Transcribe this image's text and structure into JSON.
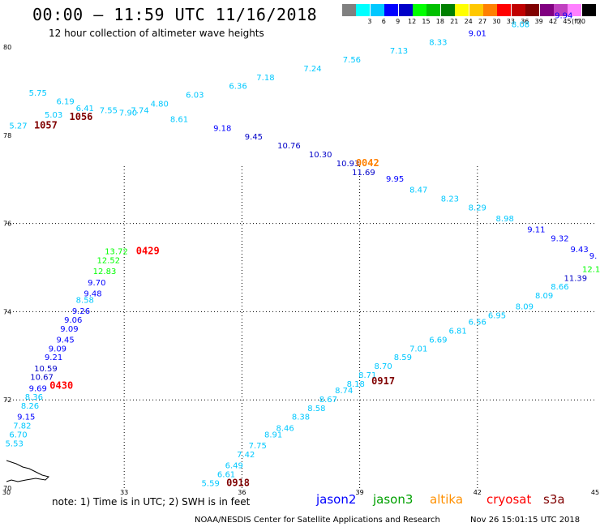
{
  "header": {
    "title": "00:00 – 11:59 UTC 11/16/2018",
    "subtitle": "12 hour collection of altimeter wave heights"
  },
  "color_scale": {
    "unit": "(ft)",
    "bins": [
      {
        "label": "",
        "color": "#808080"
      },
      {
        "label": "3",
        "color": "#00ffff"
      },
      {
        "label": "6",
        "color": "#00c8ff"
      },
      {
        "label": "9",
        "color": "#0000ff"
      },
      {
        "label": "12",
        "color": "#0000c8"
      },
      {
        "label": "15",
        "color": "#00ff00"
      },
      {
        "label": "18",
        "color": "#00c000"
      },
      {
        "label": "21",
        "color": "#008000"
      },
      {
        "label": "24",
        "color": "#ffff00"
      },
      {
        "label": "27",
        "color": "#ffc800"
      },
      {
        "label": "30",
        "color": "#ff8000"
      },
      {
        "label": "33",
        "color": "#ff0000"
      },
      {
        "label": "36",
        "color": "#c00000"
      },
      {
        "label": "39",
        "color": "#800000"
      },
      {
        "label": "42",
        "color": "#800080"
      },
      {
        "label": "45",
        "color": "#c040c0"
      },
      {
        "label": "70",
        "color": "#ff80ff"
      },
      {
        "label": "",
        "color": "#000000"
      }
    ]
  },
  "axes": {
    "lon_ticks": [
      "30",
      "33",
      "36",
      "39",
      "42",
      "45"
    ],
    "lat_ticks": [
      "70",
      "72",
      "74",
      "76",
      "78",
      "80"
    ],
    "lon_range": [
      30,
      45
    ],
    "lat_range": [
      70,
      80
    ]
  },
  "points": [
    {
      "t": "5.75",
      "lon": 30.8,
      "lat": 78.9,
      "c": "#00c8ff"
    },
    {
      "t": "6.19",
      "lon": 31.5,
      "lat": 78.7,
      "c": "#00c8ff"
    },
    {
      "t": "7.55",
      "lon": 32.6,
      "lat": 78.5,
      "c": "#00c8ff"
    },
    {
      "t": "7.90",
      "lon": 33.1,
      "lat": 78.45,
      "c": "#00c8ff"
    },
    {
      "t": "4.80",
      "lon": 33.9,
      "lat": 78.65,
      "c": "#00c8ff"
    },
    {
      "t": "6.03",
      "lon": 34.8,
      "lat": 78.85,
      "c": "#00c8ff"
    },
    {
      "t": "6.36",
      "lon": 35.9,
      "lat": 79.05,
      "c": "#00c8ff"
    },
    {
      "t": "7.18",
      "lon": 36.6,
      "lat": 79.25,
      "c": "#00c8ff"
    },
    {
      "t": "7.24",
      "lon": 37.8,
      "lat": 79.45,
      "c": "#00c8ff"
    },
    {
      "t": "7.56",
      "lon": 38.8,
      "lat": 79.65,
      "c": "#00c8ff"
    },
    {
      "t": "7.13",
      "lon": 40.0,
      "lat": 79.85,
      "c": "#00c8ff"
    },
    {
      "t": "8.33",
      "lon": 41.0,
      "lat": 80.05,
      "c": "#00c8ff"
    },
    {
      "t": "9.01",
      "lon": 42.0,
      "lat": 80.25,
      "c": "#0000ff"
    },
    {
      "t": "8.08",
      "lon": 43.1,
      "lat": 80.45,
      "c": "#00c8ff"
    },
    {
      "t": "9.94",
      "lon": 44.2,
      "lat": 80.65,
      "c": "#0000ff"
    },
    {
      "t": "5.27",
      "lon": 30.3,
      "lat": 78.15,
      "c": "#00c8ff"
    },
    {
      "t": "5.03",
      "lon": 31.2,
      "lat": 78.4,
      "c": "#00c8ff"
    },
    {
      "t": "6.41",
      "lon": 32.0,
      "lat": 78.55,
      "c": "#00c8ff"
    },
    {
      "t": "7.74",
      "lon": 33.4,
      "lat": 78.5,
      "c": "#00c8ff"
    },
    {
      "t": "8.61",
      "lon": 34.4,
      "lat": 78.3,
      "c": "#00c8ff"
    },
    {
      "t": "9.18",
      "lon": 35.5,
      "lat": 78.1,
      "c": "#0000ff"
    },
    {
      "t": "9.45",
      "lon": 36.3,
      "lat": 77.9,
      "c": "#0000c8"
    },
    {
      "t": "10.76",
      "lon": 37.2,
      "lat": 77.7,
      "c": "#0000c8"
    },
    {
      "t": "10.30",
      "lon": 38.0,
      "lat": 77.5,
      "c": "#0000c8"
    },
    {
      "t": "10.93",
      "lon": 38.7,
      "lat": 77.3,
      "c": "#0000c8"
    },
    {
      "t": "11.69",
      "lon": 39.1,
      "lat": 77.1,
      "c": "#0000c8"
    },
    {
      "t": "9.95",
      "lon": 39.9,
      "lat": 76.95,
      "c": "#0000ff"
    },
    {
      "t": "8.47",
      "lon": 40.5,
      "lat": 76.7,
      "c": "#00c8ff"
    },
    {
      "t": "8.23",
      "lon": 41.3,
      "lat": 76.5,
      "c": "#00c8ff"
    },
    {
      "t": "8.29",
      "lon": 42.0,
      "lat": 76.3,
      "c": "#00c8ff"
    },
    {
      "t": "8.98",
      "lon": 42.7,
      "lat": 76.05,
      "c": "#00c8ff"
    },
    {
      "t": "9.11",
      "lon": 43.5,
      "lat": 75.8,
      "c": "#0000ff"
    },
    {
      "t": "9.32",
      "lon": 44.1,
      "lat": 75.6,
      "c": "#0000ff"
    },
    {
      "t": "9.43",
      "lon": 44.6,
      "lat": 75.35,
      "c": "#0000ff"
    },
    {
      "t": "9.",
      "lon": 44.95,
      "lat": 75.2,
      "c": "#0000ff"
    },
    {
      "t": "13.72",
      "lon": 32.8,
      "lat": 75.3,
      "c": "#00ff00"
    },
    {
      "t": "12.52",
      "lon": 32.6,
      "lat": 75.1,
      "c": "#00ff00"
    },
    {
      "t": "12.83",
      "lon": 32.5,
      "lat": 74.85,
      "c": "#00ff00"
    },
    {
      "t": "9.70",
      "lon": 32.3,
      "lat": 74.6,
      "c": "#0000ff"
    },
    {
      "t": "9.48",
      "lon": 32.2,
      "lat": 74.35,
      "c": "#0000ff"
    },
    {
      "t": "8.58",
      "lon": 32.0,
      "lat": 74.2,
      "c": "#00c8ff"
    },
    {
      "t": "9.26",
      "lon": 31.9,
      "lat": 73.95,
      "c": "#0000ff"
    },
    {
      "t": "9.06",
      "lon": 31.7,
      "lat": 73.75,
      "c": "#0000ff"
    },
    {
      "t": "9.09",
      "lon": 31.6,
      "lat": 73.55,
      "c": "#0000ff"
    },
    {
      "t": "9.45",
      "lon": 31.5,
      "lat": 73.3,
      "c": "#0000ff"
    },
    {
      "t": "9.09",
      "lon": 31.3,
      "lat": 73.1,
      "c": "#0000ff"
    },
    {
      "t": "9.21",
      "lon": 31.2,
      "lat": 72.9,
      "c": "#0000ff"
    },
    {
      "t": "10.59",
      "lon": 31.0,
      "lat": 72.65,
      "c": "#0000c8"
    },
    {
      "t": "10.67",
      "lon": 30.9,
      "lat": 72.45,
      "c": "#0000c8"
    },
    {
      "t": "9.69",
      "lon": 30.8,
      "lat": 72.2,
      "c": "#0000ff"
    },
    {
      "t": "8.36",
      "lon": 30.7,
      "lat": 72.0,
      "c": "#00c8ff"
    },
    {
      "t": "8.26",
      "lon": 30.6,
      "lat": 71.8,
      "c": "#00c8ff"
    },
    {
      "t": "9.15",
      "lon": 30.5,
      "lat": 71.55,
      "c": "#0000ff"
    },
    {
      "t": "7.82",
      "lon": 30.4,
      "lat": 71.35,
      "c": "#00c8ff"
    },
    {
      "t": "6.70",
      "lon": 30.3,
      "lat": 71.15,
      "c": "#00c8ff"
    },
    {
      "t": "5.53",
      "lon": 30.2,
      "lat": 70.95,
      "c": "#00c8ff"
    },
    {
      "t": "5.59",
      "lon": 35.2,
      "lat": 70.05,
      "c": "#00c8ff"
    },
    {
      "t": "6.61",
      "lon": 35.6,
      "lat": 70.25,
      "c": "#00c8ff"
    },
    {
      "t": "6.49",
      "lon": 35.8,
      "lat": 70.45,
      "c": "#00c8ff"
    },
    {
      "t": "7.42",
      "lon": 36.1,
      "lat": 70.7,
      "c": "#00c8ff"
    },
    {
      "t": "7.75",
      "lon": 36.4,
      "lat": 70.9,
      "c": "#00c8ff"
    },
    {
      "t": "8.91",
      "lon": 36.8,
      "lat": 71.15,
      "c": "#00c8ff"
    },
    {
      "t": "8.46",
      "lon": 37.1,
      "lat": 71.3,
      "c": "#00c8ff"
    },
    {
      "t": "8.38",
      "lon": 37.5,
      "lat": 71.55,
      "c": "#00c8ff"
    },
    {
      "t": "8.58",
      "lon": 37.9,
      "lat": 71.75,
      "c": "#00c8ff"
    },
    {
      "t": "8.67",
      "lon": 38.2,
      "lat": 71.95,
      "c": "#00c8ff"
    },
    {
      "t": "8.74",
      "lon": 38.6,
      "lat": 72.15,
      "c": "#00c8ff"
    },
    {
      "t": "8.18",
      "lon": 38.9,
      "lat": 72.3,
      "c": "#00c8ff"
    },
    {
      "t": "8.71",
      "lon": 39.2,
      "lat": 72.5,
      "c": "#00c8ff"
    },
    {
      "t": "8.70",
      "lon": 39.6,
      "lat": 72.7,
      "c": "#00c8ff"
    },
    {
      "t": "8.59",
      "lon": 40.1,
      "lat": 72.9,
      "c": "#00c8ff"
    },
    {
      "t": "7.01",
      "lon": 40.5,
      "lat": 73.1,
      "c": "#00c8ff"
    },
    {
      "t": "6.69",
      "lon": 41.0,
      "lat": 73.3,
      "c": "#00c8ff"
    },
    {
      "t": "6.81",
      "lon": 41.5,
      "lat": 73.5,
      "c": "#00c8ff"
    },
    {
      "t": "6.56",
      "lon": 42.0,
      "lat": 73.7,
      "c": "#00c8ff"
    },
    {
      "t": "6.95",
      "lon": 42.5,
      "lat": 73.85,
      "c": "#00c8ff"
    },
    {
      "t": "8.09",
      "lon": 43.2,
      "lat": 74.05,
      "c": "#00c8ff"
    },
    {
      "t": "8.09",
      "lon": 43.7,
      "lat": 74.3,
      "c": "#00c8ff"
    },
    {
      "t": "8.66",
      "lon": 44.1,
      "lat": 74.5,
      "c": "#00c8ff"
    },
    {
      "t": "11.39",
      "lon": 44.5,
      "lat": 74.7,
      "c": "#0000c8"
    },
    {
      "t": "12.1",
      "lon": 44.9,
      "lat": 74.9,
      "c": "#00ff00"
    }
  ],
  "time_labels": [
    {
      "t": "1057",
      "lon": 31.0,
      "lat": 78.15,
      "c": "#800000"
    },
    {
      "t": "1056",
      "lon": 31.9,
      "lat": 78.35,
      "c": "#800000"
    },
    {
      "t": "0042",
      "lon": 39.2,
      "lat": 77.3,
      "c": "#ff8000"
    },
    {
      "t": "0429",
      "lon": 33.6,
      "lat": 75.3,
      "c": "#ff0000"
    },
    {
      "t": "0430",
      "lon": 31.4,
      "lat": 72.25,
      "c": "#ff0000"
    },
    {
      "t": "0917",
      "lon": 39.6,
      "lat": 72.35,
      "c": "#800000"
    },
    {
      "t": "0918",
      "lon": 35.9,
      "lat": 70.05,
      "c": "#800000"
    }
  ],
  "footer": {
    "note": "note:  1) Time is in UTC;  2) SWH is in feet",
    "satellites": [
      {
        "name": "jason2",
        "color": "#0000ff"
      },
      {
        "name": "jason3",
        "color": "#00a000"
      },
      {
        "name": "altika",
        "color": "#ff9000"
      },
      {
        "name": "cryosat",
        "color": "#ff0000"
      },
      {
        "name": "s3a",
        "color": "#800000"
      }
    ],
    "credit": "NOAA/NESDIS Center for Satellite Applications and Research",
    "timestamp": "Nov 26 15:01:15 UTC 2018"
  }
}
